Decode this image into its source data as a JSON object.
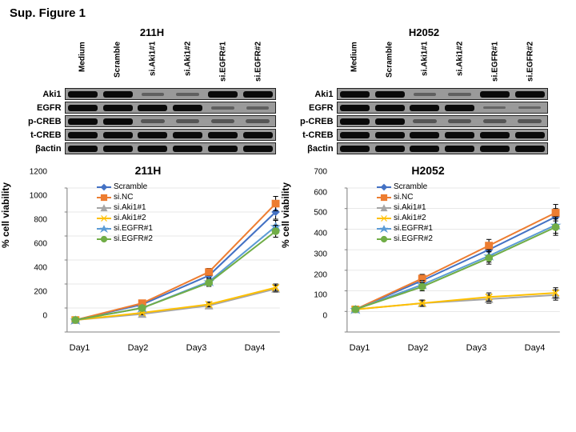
{
  "figure_title": "Sup. Figure 1",
  "panels": [
    {
      "title": "211H"
    },
    {
      "title": "H2052"
    }
  ],
  "blot_columns": [
    "Medium",
    "Scramble",
    "si.Aki1#1",
    "si.Aki1#2",
    "si.EGFR#1",
    "si.EGFR#2"
  ],
  "blot_rows": [
    "Aki1",
    "EGFR",
    "p-CREB",
    "t-CREB",
    "βactin"
  ],
  "blot_data_211H": {
    "Aki1": [
      1.0,
      1.0,
      0.2,
      0.2,
      1.0,
      1.0
    ],
    "EGFR": [
      1.0,
      1.0,
      1.0,
      1.0,
      0.2,
      0.2
    ],
    "p-CREB": [
      1.0,
      1.0,
      0.3,
      0.3,
      0.3,
      0.3
    ],
    "t-CREB": [
      1.0,
      1.0,
      1.0,
      1.0,
      1.0,
      1.0
    ],
    "βactin": [
      1.0,
      1.0,
      1.0,
      1.0,
      1.0,
      1.0
    ]
  },
  "blot_data_H2052": {
    "Aki1": [
      1.0,
      1.0,
      0.2,
      0.2,
      1.0,
      1.0
    ],
    "EGFR": [
      1.0,
      1.0,
      1.0,
      1.0,
      0.15,
      0.15
    ],
    "p-CREB": [
      1.0,
      1.0,
      0.3,
      0.3,
      0.3,
      0.3
    ],
    "t-CREB": [
      1.0,
      1.0,
      1.0,
      1.0,
      1.0,
      1.0
    ],
    "βactin": [
      1.0,
      1.0,
      1.0,
      1.0,
      1.0,
      1.0
    ]
  },
  "band_color": "#0a0a0a",
  "band_bg": "#9a9a9a",
  "charts": [
    {
      "title": "211H",
      "ylabel": "% cell viability",
      "ylim": [
        0,
        1200
      ],
      "ytick_step": 200,
      "x_categories": [
        "Day1",
        "Day2",
        "Day3",
        "Day4"
      ],
      "series": [
        {
          "name": "Scramble",
          "color": "#4472c4",
          "marker": "diamond",
          "values": [
            100,
            230,
            470,
            1000
          ],
          "err": [
            10,
            20,
            30,
            60
          ]
        },
        {
          "name": "si.NC",
          "color": "#ed7d31",
          "marker": "square",
          "values": [
            100,
            240,
            500,
            1070
          ],
          "err": [
            10,
            20,
            30,
            60
          ]
        },
        {
          "name": "si.Aki1#1",
          "color": "#a5a5a5",
          "marker": "triangle",
          "values": [
            100,
            150,
            220,
            360
          ],
          "err": [
            10,
            15,
            20,
            30
          ]
        },
        {
          "name": "si.Aki1#2",
          "color": "#ffc000",
          "marker": "x",
          "values": [
            100,
            160,
            230,
            370
          ],
          "err": [
            10,
            15,
            20,
            30
          ]
        },
        {
          "name": "si.EGFR#1",
          "color": "#5b9bd5",
          "marker": "star",
          "values": [
            100,
            200,
            420,
            880
          ],
          "err": [
            10,
            20,
            30,
            50
          ]
        },
        {
          "name": "si.EGFR#2",
          "color": "#70ad47",
          "marker": "circle",
          "values": [
            100,
            200,
            410,
            840
          ],
          "err": [
            10,
            20,
            30,
            50
          ]
        }
      ]
    },
    {
      "title": "H2052",
      "ylabel": "% cell viability",
      "ylim": [
        0,
        700
      ],
      "ytick_step": 100,
      "x_categories": [
        "Day1",
        "Day2",
        "Day3",
        "Day4"
      ],
      "series": [
        {
          "name": "Scramble",
          "color": "#4472c4",
          "marker": "diamond",
          "values": [
            110,
            250,
            400,
            560
          ],
          "err": [
            10,
            20,
            30,
            40
          ]
        },
        {
          "name": "si.NC",
          "color": "#ed7d31",
          "marker": "square",
          "values": [
            110,
            260,
            420,
            580
          ],
          "err": [
            10,
            20,
            30,
            40
          ]
        },
        {
          "name": "si.Aki1#1",
          "color": "#a5a5a5",
          "marker": "triangle",
          "values": [
            110,
            140,
            160,
            180
          ],
          "err": [
            10,
            15,
            20,
            25
          ]
        },
        {
          "name": "si.Aki1#2",
          "color": "#ffc000",
          "marker": "x",
          "values": [
            110,
            140,
            170,
            190
          ],
          "err": [
            10,
            15,
            20,
            25
          ]
        },
        {
          "name": "si.EGFR#1",
          "color": "#5b9bd5",
          "marker": "star",
          "values": [
            110,
            230,
            370,
            520
          ],
          "err": [
            10,
            20,
            30,
            40
          ]
        },
        {
          "name": "si.EGFR#2",
          "color": "#70ad47",
          "marker": "circle",
          "values": [
            110,
            220,
            360,
            510
          ],
          "err": [
            10,
            20,
            30,
            40
          ]
        }
      ]
    }
  ],
  "line_width": 2,
  "marker_size": 5,
  "grid_color": "#d0d0d0",
  "axis_color": "#808080",
  "font": {
    "label": 11
  }
}
